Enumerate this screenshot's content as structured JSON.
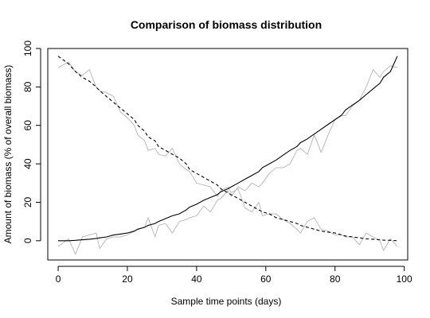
{
  "chart_data": {
    "type": "line",
    "title": "Comparison of biomass distribution",
    "xlabel": "Sample time points (days)",
    "ylabel": "Amount of biomass (% of overall biomass)",
    "xlim": [
      -3,
      101
    ],
    "ylim": [
      -10,
      100
    ],
    "xticks": [
      0,
      20,
      40,
      60,
      80,
      100
    ],
    "yticks": [
      0,
      20,
      40,
      60,
      80,
      100
    ],
    "grid": false,
    "legend": "none",
    "x": [
      0,
      3,
      5,
      7,
      9,
      11,
      12,
      14,
      16,
      18,
      20,
      22,
      23,
      25,
      26,
      28,
      29,
      31,
      33,
      35,
      37,
      38,
      40,
      42,
      44,
      46,
      47,
      49,
      50,
      52,
      54,
      56,
      58,
      59,
      61,
      63,
      65,
      67,
      69,
      70,
      72,
      74,
      76,
      78,
      80,
      82,
      83,
      85,
      87,
      89,
      91,
      93,
      94,
      96,
      98
    ],
    "series": [
      {
        "style": "noisy-grey",
        "color": "#b4b4b4",
        "values": [
          -3,
          1,
          -7,
          2,
          3,
          4,
          -4,
          1,
          2,
          2,
          3,
          5,
          6,
          7,
          12,
          2,
          8,
          9,
          4,
          10,
          11,
          12,
          13,
          18,
          15,
          21,
          22,
          26,
          23,
          28,
          26,
          30,
          28,
          30,
          35,
          38,
          38,
          40,
          47,
          48,
          45,
          55,
          46,
          55,
          63,
          65,
          65,
          70,
          73,
          80,
          89,
          85,
          88,
          91,
          90
        ]
      },
      {
        "style": "noisy-grey",
        "color": "#b4b4b4",
        "values": [
          90,
          93,
          88,
          86,
          89,
          80,
          78,
          77,
          75,
          67,
          64,
          60,
          55,
          52,
          47,
          48,
          45,
          44,
          48,
          40,
          37,
          36,
          30,
          29,
          28,
          23,
          26,
          28,
          25,
          27,
          17,
          15,
          20,
          13,
          14,
          14,
          11,
          9,
          6,
          4,
          10,
          12,
          6,
          5,
          3,
          3,
          2,
          2,
          -2,
          4,
          2,
          0,
          -5,
          1,
          -3
        ]
      },
      {
        "style": "solid",
        "color": "#000000",
        "values": [
          0,
          0,
          0.2,
          0.5,
          0.8,
          1.2,
          1.5,
          2,
          3,
          3.5,
          4,
          5,
          6,
          7,
          8,
          9,
          10,
          11.5,
          13,
          14,
          16,
          17.5,
          19,
          21,
          22.5,
          24,
          25.5,
          27,
          28,
          30,
          32,
          34,
          36,
          38,
          40,
          42,
          44.5,
          47,
          49,
          51,
          53,
          55.5,
          58,
          60.5,
          63,
          65.5,
          68,
          70.5,
          73,
          76,
          79,
          82,
          85,
          88,
          96
        ]
      },
      {
        "style": "dashed",
        "color": "#000000",
        "values": [
          96,
          92,
          88,
          85,
          83,
          80,
          78,
          75,
          72,
          69,
          66,
          63,
          60,
          57,
          54,
          52,
          49,
          47,
          45,
          43,
          40,
          37,
          35,
          33,
          31,
          29,
          27,
          25,
          24,
          22,
          20,
          18,
          16,
          15,
          14,
          12,
          11,
          10,
          9,
          8,
          7,
          6,
          5,
          4.5,
          4,
          3,
          2.5,
          2,
          1.5,
          1,
          0.8,
          0.5,
          0.3,
          0.2,
          0
        ]
      }
    ]
  }
}
